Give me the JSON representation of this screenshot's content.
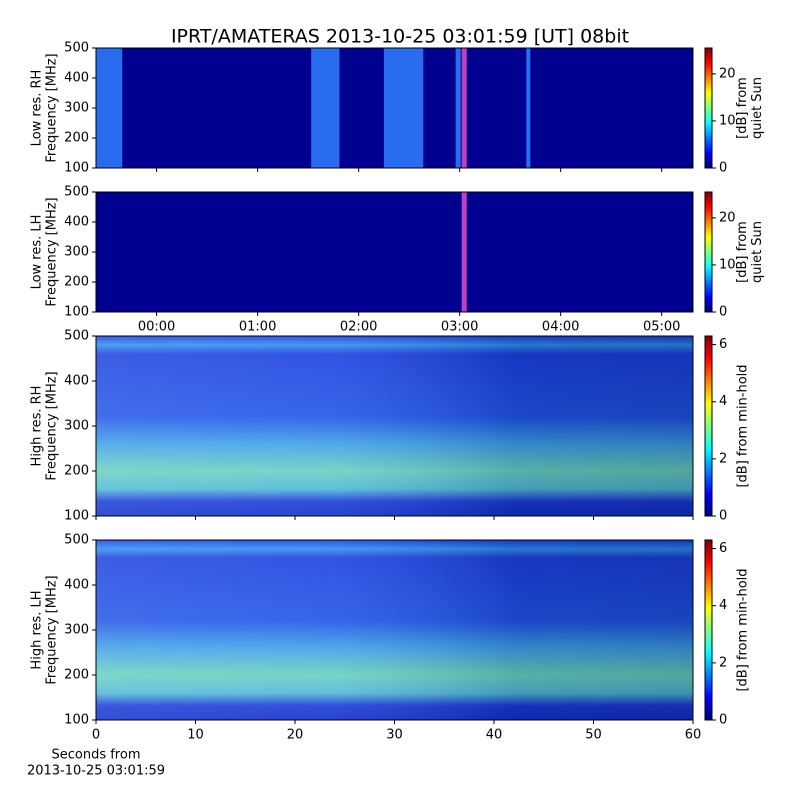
{
  "chart_data": [
    {
      "type": "spectrogram",
      "title": "IPRT/AMATERAS 2013-10-25 03:01:59 [UT]   08bit",
      "ylabel": [
        "Low res. RH",
        "Frequency [MHz]"
      ],
      "ylim": [
        100,
        500
      ],
      "yticks": [
        100,
        200,
        300,
        400,
        500
      ],
      "xlim": [
        -0.6,
        5.31
      ],
      "xticks": [
        {
          "value": 0,
          "label": "00:00"
        },
        {
          "value": 1,
          "label": "01:00"
        },
        {
          "value": 2,
          "label": "02:00"
        },
        {
          "value": 3,
          "label": "03:00"
        },
        {
          "value": 4,
          "label": "04:00"
        },
        {
          "value": 5,
          "label": "05:00"
        }
      ],
      "xtick_labels": false,
      "bands": [
        {
          "x": [
            -0.6,
            -0.34
          ],
          "color": "#2a6cf0"
        },
        {
          "x": [
            1.53,
            1.81
          ],
          "color": "#2a6cf0"
        },
        {
          "x": [
            2.25,
            2.64
          ],
          "color": "#2a6cf0"
        },
        {
          "x": [
            2.96,
            3.01
          ],
          "color": "#2a6cf0"
        },
        {
          "x": [
            3.02,
            3.07
          ],
          "color": "#c040c0"
        },
        {
          "x": [
            3.66,
            3.7
          ],
          "color": "#2a6cf0"
        }
      ],
      "colorbar": {
        "label": [
          "[dB] from",
          "quiet Sun"
        ],
        "lim": [
          0,
          25.5
        ],
        "ticks": [
          0,
          10,
          20
        ]
      }
    },
    {
      "type": "spectrogram",
      "ylabel": [
        "Low res. LH",
        "Frequency [MHz]"
      ],
      "ylim": [
        100,
        500
      ],
      "yticks": [
        100,
        200,
        300,
        400,
        500
      ],
      "xlim": [
        -0.6,
        5.31
      ],
      "xticks": [
        {
          "value": 0,
          "label": "00:00"
        },
        {
          "value": 1,
          "label": "01:00"
        },
        {
          "value": 2,
          "label": "02:00"
        },
        {
          "value": 3,
          "label": "03:00"
        },
        {
          "value": 4,
          "label": "04:00"
        },
        {
          "value": 5,
          "label": "05:00"
        }
      ],
      "xtick_labels": true,
      "bands": [
        {
          "x": [
            3.02,
            3.07
          ],
          "color": "#c040c0"
        }
      ],
      "colorbar": {
        "label": [
          "[dB] from",
          "quiet Sun"
        ],
        "lim": [
          0,
          25.5
        ],
        "ticks": [
          0,
          10,
          20
        ]
      }
    },
    {
      "type": "spectrogram",
      "ylabel": [
        "High res. RH",
        "Frequency [MHz]"
      ],
      "ylim": [
        100,
        500
      ],
      "yticks": [
        100,
        200,
        300,
        400,
        500
      ],
      "xlim": [
        0,
        60
      ],
      "xticks": [
        0,
        10,
        20,
        30,
        40,
        50,
        60
      ],
      "xtick_labels": false,
      "colorbar": {
        "label": [
          "[dB] from min-hold"
        ],
        "lim": [
          0,
          6.3
        ],
        "ticks": [
          0,
          2,
          4,
          6
        ]
      }
    },
    {
      "type": "spectrogram",
      "ylabel": [
        "High res. LH",
        "Frequency [MHz]"
      ],
      "ylim": [
        100,
        500
      ],
      "yticks": [
        100,
        200,
        300,
        400,
        500
      ],
      "xlim": [
        0,
        60
      ],
      "xticks": [
        0,
        10,
        20,
        30,
        40,
        50,
        60
      ],
      "xtick_labels": true,
      "xlabel": [
        "Seconds from",
        "2013-10-25 03:01:59"
      ],
      "colorbar": {
        "label": [
          "[dB] from min-hold"
        ],
        "lim": [
          0,
          6.3
        ],
        "ticks": [
          0,
          2,
          4,
          6
        ]
      }
    }
  ]
}
